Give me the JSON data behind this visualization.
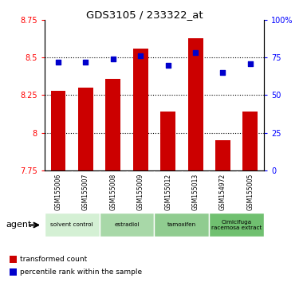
{
  "title": "GDS3105 / 233322_at",
  "samples": [
    "GSM155006",
    "GSM155007",
    "GSM155008",
    "GSM155009",
    "GSM155012",
    "GSM155013",
    "GSM154972",
    "GSM155005"
  ],
  "bar_values": [
    8.28,
    8.3,
    8.36,
    8.56,
    8.14,
    8.63,
    7.95,
    8.14
  ],
  "dot_values": [
    72,
    72,
    74,
    76,
    70,
    78,
    65,
    71
  ],
  "ylim_left": [
    7.75,
    8.75
  ],
  "ylim_right": [
    0,
    100
  ],
  "yticks_left": [
    7.75,
    8.0,
    8.25,
    8.5,
    8.75
  ],
  "ytick_labels_left": [
    "7.75",
    "8",
    "8.25",
    "8.5",
    "8.75"
  ],
  "yticks_right": [
    0,
    25,
    50,
    75,
    100
  ],
  "ytick_labels_right": [
    "0",
    "25",
    "50",
    "75",
    "100%"
  ],
  "bar_color": "#cc0000",
  "dot_color": "#0000cc",
  "bar_width": 0.55,
  "agent_groups": [
    {
      "label": "solvent control",
      "start": 0,
      "end": 2,
      "color": "#d4f0d4"
    },
    {
      "label": "estradiol",
      "start": 2,
      "end": 4,
      "color": "#a8d8a8"
    },
    {
      "label": "tamoxifen",
      "start": 4,
      "end": 6,
      "color": "#90cc90"
    },
    {
      "label": "Cimicifuga\nracemosa extract",
      "start": 6,
      "end": 8,
      "color": "#70c070"
    }
  ],
  "agent_label": "agent",
  "legend_bar_label": "transformed count",
  "legend_dot_label": "percentile rank within the sample",
  "tick_bg": "#c8c8c8",
  "gridline_y": [
    8.0,
    8.25,
    8.5
  ]
}
